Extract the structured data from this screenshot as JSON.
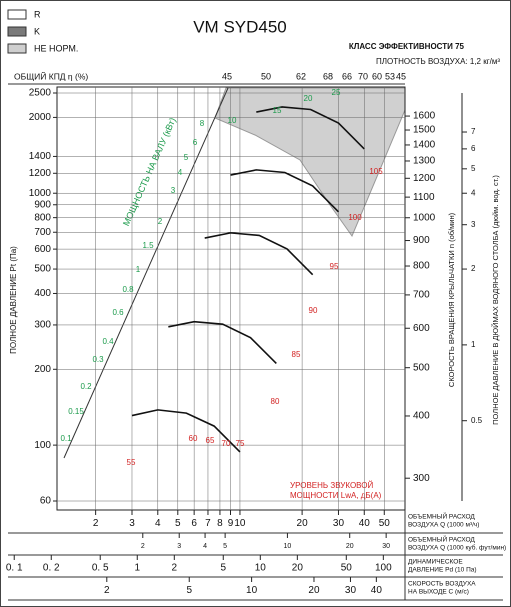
{
  "legend": [
    {
      "label": "R",
      "color": "#ffffff"
    },
    {
      "label": "K",
      "color": "#7a7a7a"
    },
    {
      "label": "НЕ НОРМ.",
      "color": "#cfcfcf"
    }
  ],
  "chart_data": {
    "type": "line",
    "title": "VM SYD450",
    "subtitle": [
      "КЛАСС ЭФФЕКТИВНОСТИ 75",
      "ПЛОТНОСТЬ ВОЗДУХА: 1,2 кг/м³"
    ],
    "ylabel": "ПОЛНОЕ ДАВЛЕНИЕ Pt (Па)",
    "log_scale": true,
    "grid": true,
    "xlim": [
      1.3,
      63
    ],
    "ylim": [
      60,
      2500
    ],
    "xticks": [
      2,
      3,
      4,
      5,
      6,
      7,
      8,
      9,
      10,
      20,
      30,
      40,
      50
    ],
    "yticks": [
      60,
      100,
      200,
      300,
      400,
      500,
      600,
      700,
      800,
      900,
      1000,
      1200,
      1400,
      2000,
      2500
    ],
    "series": [
      {
        "color": "#111111",
        "x": [
          12,
          16,
          22,
          30,
          40
        ],
        "values": [
          2100,
          2200,
          2150,
          1900,
          1500
        ]
      },
      {
        "color": "#111111",
        "x": [
          9,
          12,
          16.5,
          22.5,
          30
        ],
        "values": [
          1181,
          1238,
          1209,
          1069,
          844
        ]
      },
      {
        "color": "#111111",
        "x": [
          6.75,
          9,
          12.4,
          16.9,
          22.5
        ],
        "values": [
          664,
          696,
          680,
          601,
          475
        ]
      },
      {
        "color": "#111111",
        "x": [
          4.5,
          6,
          8.25,
          11.25,
          15
        ],
        "values": [
          295,
          309,
          302,
          267,
          211
        ]
      },
      {
        "color": "#111111",
        "x": [
          3,
          4,
          5.5,
          7.5,
          10
        ],
        "values": [
          131,
          138,
          134,
          119,
          94
        ]
      }
    ],
    "efficiency": {
      "label": "ОБЩИЙ КПД η (%)",
      "values": [
        45,
        50,
        62,
        68,
        66,
        70,
        60,
        53,
        45
      ]
    },
    "power": {
      "label": "МОЩНОСТЬ НА ВАЛУ (кВт)",
      "color": "#1a9a4a",
      "values": [
        25,
        20,
        15,
        10,
        8,
        6,
        5,
        4,
        3,
        2,
        1.5,
        1,
        0.8,
        0.6,
        0.4,
        0.3,
        0.2,
        0.15,
        0.1
      ]
    },
    "sound": {
      "label": [
        "УРОВЕНЬ ЗВУКОВОЙ",
        "МОЩНОСТИ LwA, дБ(А)"
      ],
      "color": "#d22222",
      "values": [
        55,
        60,
        65,
        70,
        75,
        80,
        85,
        90,
        95,
        100,
        105
      ]
    },
    "speed_axis": {
      "label": "СКОРОСТЬ ВРАЩЕНИЯ КРЫЛЬЧАТКИ n (об/мин)",
      "lim": [
        270,
        1780
      ],
      "ticks": [
        300,
        400,
        500,
        600,
        700,
        800,
        900,
        1000,
        1100,
        1200,
        1300,
        1400,
        1500,
        1600
      ]
    },
    "inch_axis": {
      "label": "ПОЛНОЕ ДАВЛЕНИЕ В ДЮЙМАХ ВОДЯНОГО СТОЛБА (дюйм. вод. ст.)",
      "lim": [
        0.24,
        10
      ],
      "ticks": [
        0.5,
        1,
        2,
        3,
        4,
        5,
        6,
        7
      ]
    },
    "bottom_scales": [
      {
        "label": [
          "ОБЪЕМНЫЙ РАСХОД",
          "ВОЗДУХА Q (1000 м³/ч)"
        ],
        "lim": [
          1.3,
          63
        ],
        "ticks": [
          2,
          3,
          4,
          5,
          6,
          7,
          8,
          9,
          10,
          20,
          30,
          40,
          50
        ]
      },
      {
        "label": [
          "ОБЪЕМНЫЙ РАСХОД",
          "ВОЗДУХА Q (1000 куб. фут/мин)"
        ],
        "lim": [
          0.77,
          37
        ],
        "ticks": [
          2,
          3,
          4,
          5,
          10,
          20,
          30
        ]
      },
      {
        "label": [
          "ДИНАМИЧЕСКОЕ",
          "ДАВЛЕНИЕ Pd (10 Па)"
        ],
        "lim": [
          0.089,
          150
        ],
        "ticks": [
          {
            "value": 0.1,
            "label": "0. 1"
          },
          {
            "value": 0.2,
            "label": "0. 2"
          },
          {
            "value": 0.5,
            "label": "0. 5"
          },
          1,
          2,
          5,
          10,
          20,
          50,
          100
        ]
      },
      {
        "label": [
          "СКОРОСТЬ ВОЗДУХА",
          "НА ВЫХОДЕ C (м/с)"
        ],
        "lim": [
          1.15,
          55
        ],
        "ticks": [
          2,
          5,
          10,
          20,
          30,
          40
        ]
      }
    ]
  }
}
